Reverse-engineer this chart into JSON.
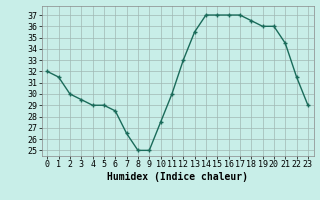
{
  "x": [
    0,
    1,
    2,
    3,
    4,
    5,
    6,
    7,
    8,
    9,
    10,
    11,
    12,
    13,
    14,
    15,
    16,
    17,
    18,
    19,
    20,
    21,
    22,
    23
  ],
  "y": [
    32,
    31.5,
    30,
    29.5,
    29,
    29,
    28.5,
    26.5,
    25,
    25,
    27.5,
    30,
    33,
    35.5,
    37,
    37,
    37,
    37,
    36.5,
    36,
    36,
    34.5,
    31.5,
    29
  ],
  "line_color": "#1a6b5a",
  "marker": "+",
  "marker_size": 3,
  "marker_linewidth": 1.0,
  "line_width": 1.0,
  "background_color": "#c8eee8",
  "grid_color": "#a0b8b4",
  "xlabel": "Humidex (Indice chaleur)",
  "xlabel_fontsize": 7,
  "tick_fontsize": 6,
  "ylim": [
    24.5,
    37.8
  ],
  "xlim": [
    -0.5,
    23.5
  ],
  "yticks": [
    25,
    26,
    27,
    28,
    29,
    30,
    31,
    32,
    33,
    34,
    35,
    36,
    37
  ],
  "xticks": [
    0,
    1,
    2,
    3,
    4,
    5,
    6,
    7,
    8,
    9,
    10,
    11,
    12,
    13,
    14,
    15,
    16,
    17,
    18,
    19,
    20,
    21,
    22,
    23
  ]
}
